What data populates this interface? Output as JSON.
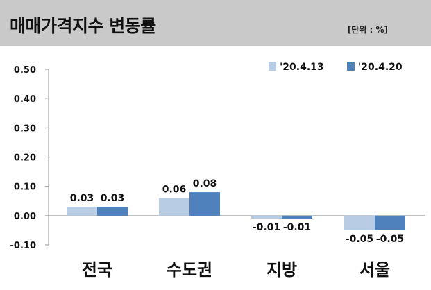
{
  "header": {
    "title": "매매가격지수 변동률",
    "unit": "[단위 : %]"
  },
  "colors": {
    "series1": "#b8cce4",
    "series2": "#4f81bd",
    "header_bg": "#c9c9c9"
  },
  "chart_data": {
    "type": "bar",
    "title": "매매가격지수 변동률",
    "unit": "[단위 : %]",
    "categories": [
      "전국",
      "수도권",
      "지방",
      "서울"
    ],
    "series": [
      {
        "name": "'20.4.13",
        "values": [
          0.03,
          0.06,
          -0.01,
          -0.05
        ],
        "labels": [
          "0.03",
          "0.06",
          "-0.01",
          "-0.05"
        ]
      },
      {
        "name": "'20.4.20",
        "values": [
          0.03,
          0.08,
          -0.01,
          -0.05
        ],
        "labels": [
          "0.03",
          "0.08",
          "-0.01",
          "-0.05"
        ]
      }
    ],
    "yticks": [
      "0.50",
      "0.40",
      "0.30",
      "0.20",
      "0.10",
      "0.00",
      "-0.10"
    ],
    "ylim": [
      -0.1,
      0.5
    ],
    "grid": false,
    "legend": "top-right"
  }
}
